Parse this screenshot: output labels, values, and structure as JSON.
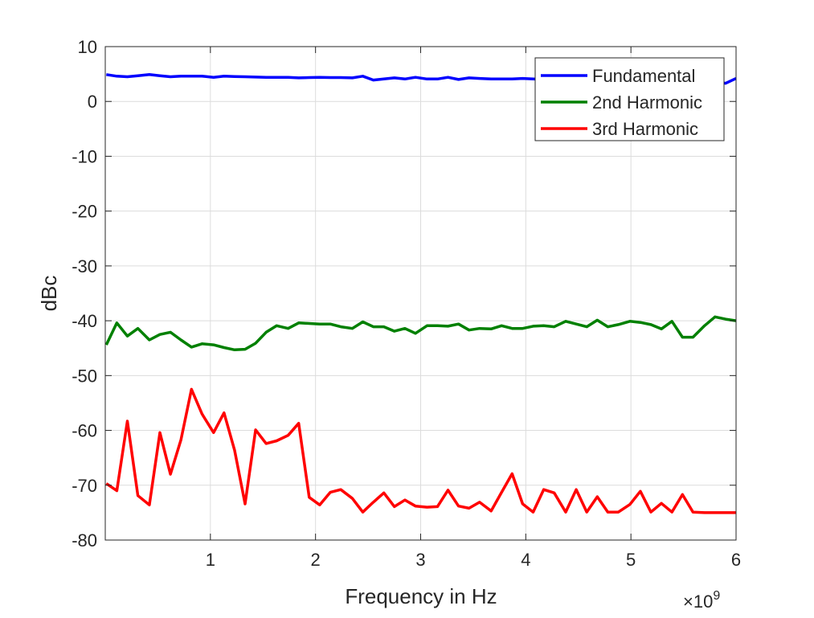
{
  "chart_data": {
    "type": "line",
    "title": "",
    "xlabel": "Frequency in Hz",
    "ylabel": "dBc",
    "x_exponent_label": "×10",
    "x_exponent_power": "9",
    "xlim": [
      0,
      6
    ],
    "ylim": [
      -80,
      10
    ],
    "xticks": [
      1,
      2,
      3,
      4,
      5,
      6
    ],
    "yticks": [
      10,
      0,
      -10,
      -20,
      -30,
      -40,
      -50,
      -60,
      -70,
      -80
    ],
    "grid": true,
    "legend_placement": "top-right",
    "x": [
      0.01,
      0.11,
      0.21,
      0.31,
      0.42,
      0.52,
      0.62,
      0.72,
      0.82,
      0.92,
      1.03,
      1.13,
      1.23,
      1.33,
      1.43,
      1.53,
      1.63,
      1.74,
      1.84,
      1.94,
      2.04,
      2.14,
      2.24,
      2.35,
      2.45,
      2.55,
      2.65,
      2.75,
      2.85,
      2.95,
      3.06,
      3.16,
      3.26,
      3.36,
      3.46,
      3.56,
      3.67,
      3.77,
      3.87,
      3.97,
      4.07,
      4.17,
      4.27,
      4.38,
      4.48,
      4.58,
      4.68,
      4.78,
      4.88,
      4.99,
      5.09,
      5.19,
      5.29,
      5.39,
      5.49,
      5.59,
      5.7,
      5.8,
      5.9,
      6.0
    ],
    "series": [
      {
        "name": "Fundamental",
        "color": "#0000ff",
        "values": [
          4.9,
          4.6,
          4.5,
          4.7,
          4.9,
          4.7,
          4.5,
          4.6,
          4.6,
          4.6,
          4.4,
          4.6,
          4.55,
          4.5,
          4.45,
          4.4,
          4.4,
          4.4,
          4.3,
          4.35,
          4.4,
          4.35,
          4.35,
          4.3,
          4.6,
          3.9,
          4.1,
          4.3,
          4.1,
          4.4,
          4.1,
          4.1,
          4.4,
          4.0,
          4.3,
          4.2,
          4.1,
          4.1,
          4.1,
          4.2,
          4.1,
          4.0,
          4.0,
          4.0,
          4.0,
          4.0,
          4.0,
          4.0,
          4.0,
          4.0,
          4.0,
          4.0,
          4.0,
          4.0,
          4.0,
          4.0,
          3.9,
          3.7,
          3.3,
          4.2
        ]
      },
      {
        "name": "2nd Harmonic",
        "color": "#008000",
        "values": [
          -44.4,
          -40.4,
          -42.8,
          -41.4,
          -43.5,
          -42.5,
          -42.1,
          -43.5,
          -44.8,
          -44.2,
          -44.4,
          -44.9,
          -45.3,
          -45.2,
          -44.1,
          -42.1,
          -40.9,
          -41.4,
          -40.4,
          -40.5,
          -40.6,
          -40.6,
          -41.1,
          -41.4,
          -40.2,
          -41.1,
          -41.1,
          -41.9,
          -41.4,
          -42.3,
          -40.9,
          -40.9,
          -41.0,
          -40.6,
          -41.7,
          -41.4,
          -41.5,
          -40.9,
          -41.4,
          -41.4,
          -41.0,
          -40.9,
          -41.1,
          -40.1,
          -40.6,
          -41.1,
          -39.9,
          -41.1,
          -40.7,
          -40.1,
          -40.3,
          -40.7,
          -41.5,
          -40.1,
          -43.0,
          -43.0,
          -40.9,
          -39.3,
          -39.7,
          -40.0
        ]
      },
      {
        "name": "3rd Harmonic",
        "color": "#ff0000",
        "values": [
          -69.7,
          -71.0,
          -58.3,
          -71.9,
          -73.6,
          -60.4,
          -68.0,
          -61.7,
          -52.5,
          -57.0,
          -60.4,
          -56.8,
          -63.6,
          -73.4,
          -59.9,
          -62.4,
          -61.9,
          -60.9,
          -58.7,
          -72.2,
          -73.6,
          -71.3,
          -70.8,
          -72.4,
          -74.9,
          -73.1,
          -71.4,
          -73.9,
          -72.7,
          -73.8,
          -74.0,
          -73.9,
          -70.9,
          -73.8,
          -74.2,
          -73.1,
          -74.7,
          -71.3,
          -67.9,
          -73.4,
          -74.9,
          -70.8,
          -71.4,
          -74.9,
          -70.8,
          -74.9,
          -72.1,
          -74.9,
          -74.9,
          -73.5,
          -71.1,
          -74.9,
          -73.3,
          -74.9,
          -71.7,
          -74.9,
          -75.0,
          -75.0,
          -75.0,
          -75.0
        ]
      }
    ]
  }
}
